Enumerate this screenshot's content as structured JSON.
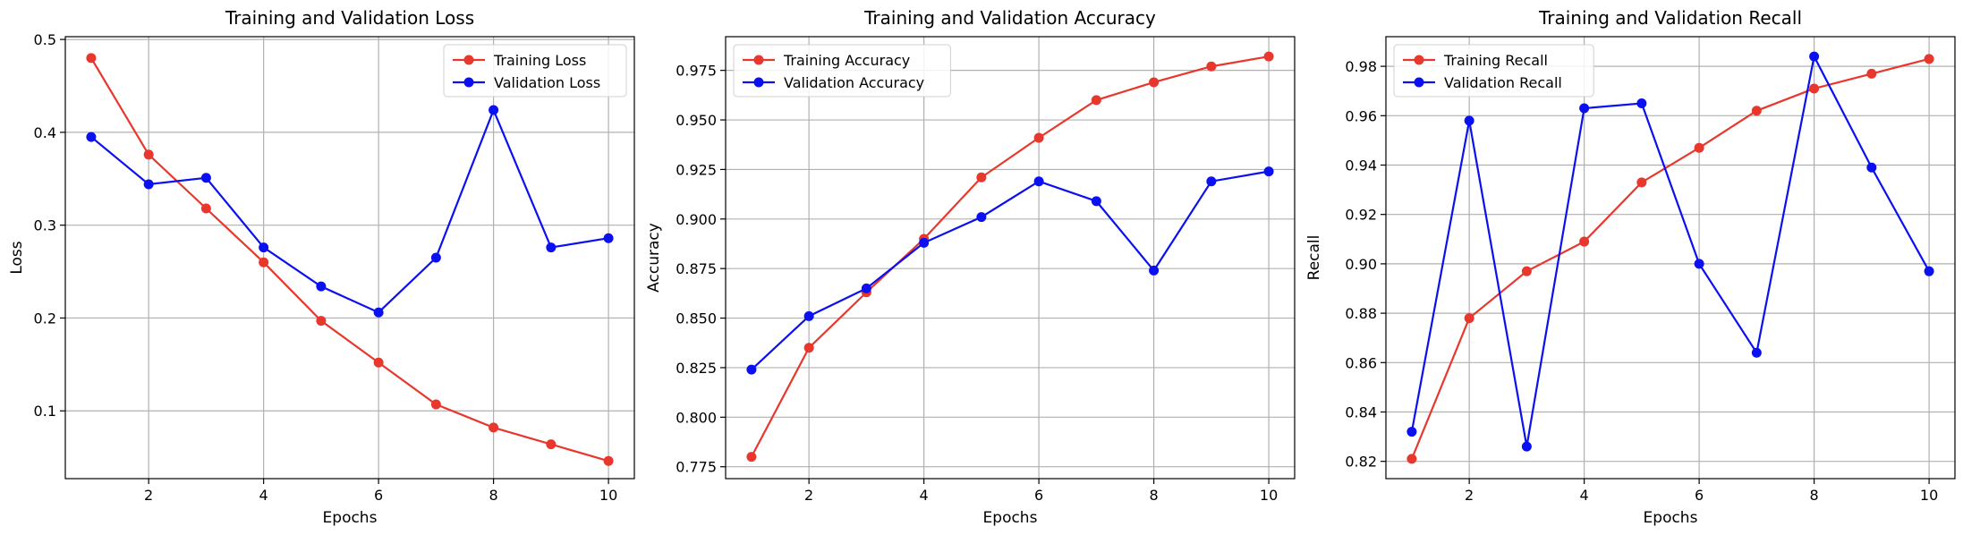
{
  "figure": {
    "colors": {
      "train": "#e8372c",
      "val": "#0a10f0",
      "grid": "#b0b0b0",
      "axes": "#000000"
    }
  },
  "chart_data": [
    {
      "type": "line",
      "title": "Training and Validation Loss",
      "xlabel": "Epochs",
      "ylabel": "Loss",
      "x": [
        1,
        2,
        3,
        4,
        5,
        6,
        7,
        8,
        9,
        10
      ],
      "xlim": [
        0.55,
        10.45
      ],
      "ylim": [
        0.027,
        0.503
      ],
      "xticks": [
        2,
        4,
        6,
        8,
        10
      ],
      "yticks": [
        0.1,
        0.2,
        0.3,
        0.4,
        0.5
      ],
      "ytick_labels": [
        "0.1",
        "0.2",
        "0.3",
        "0.4",
        "0.5"
      ],
      "grid": true,
      "legend": "top-right",
      "series": [
        {
          "name": "Training Loss",
          "color": "#e8372c",
          "values": [
            0.48,
            0.376,
            0.318,
            0.26,
            0.197,
            0.152,
            0.107,
            0.082,
            0.064,
            0.046
          ]
        },
        {
          "name": "Validation Loss",
          "color": "#0a10f0",
          "values": [
            0.395,
            0.344,
            0.351,
            0.276,
            0.234,
            0.206,
            0.265,
            0.424,
            0.276,
            0.286
          ]
        }
      ]
    },
    {
      "type": "line",
      "title": "Training and Validation Accuracy",
      "xlabel": "Epochs",
      "ylabel": "Accuracy",
      "x": [
        1,
        2,
        3,
        4,
        5,
        6,
        7,
        8,
        9,
        10
      ],
      "xlim": [
        0.55,
        10.45
      ],
      "ylim": [
        0.769,
        0.992
      ],
      "xticks": [
        2,
        4,
        6,
        8,
        10
      ],
      "yticks": [
        0.775,
        0.8,
        0.825,
        0.85,
        0.875,
        0.9,
        0.925,
        0.95,
        0.975
      ],
      "ytick_labels": [
        "0.775",
        "0.800",
        "0.825",
        "0.850",
        "0.875",
        "0.900",
        "0.925",
        "0.950",
        "0.975"
      ],
      "grid": true,
      "legend": "top-left",
      "series": [
        {
          "name": "Training Accuracy",
          "color": "#e8372c",
          "values": [
            0.78,
            0.835,
            0.863,
            0.89,
            0.921,
            0.941,
            0.96,
            0.969,
            0.977,
            0.982
          ]
        },
        {
          "name": "Validation Accuracy",
          "color": "#0a10f0",
          "values": [
            0.824,
            0.851,
            0.865,
            0.888,
            0.901,
            0.919,
            0.909,
            0.874,
            0.919,
            0.924
          ]
        }
      ]
    },
    {
      "type": "line",
      "title": "Training and Validation Recall",
      "xlabel": "Epochs",
      "ylabel": "Recall",
      "x": [
        1,
        2,
        3,
        4,
        5,
        6,
        7,
        8,
        9,
        10
      ],
      "xlim": [
        0.55,
        10.45
      ],
      "ylim": [
        0.813,
        0.992
      ],
      "xticks": [
        2,
        4,
        6,
        8,
        10
      ],
      "yticks": [
        0.82,
        0.84,
        0.86,
        0.88,
        0.9,
        0.92,
        0.94,
        0.96,
        0.98
      ],
      "ytick_labels": [
        "0.82",
        "0.84",
        "0.86",
        "0.88",
        "0.90",
        "0.92",
        "0.94",
        "0.96",
        "0.98"
      ],
      "grid": true,
      "legend": "top-left",
      "series": [
        {
          "name": "Training Recall",
          "color": "#e8372c",
          "values": [
            0.821,
            0.878,
            0.897,
            0.909,
            0.933,
            0.947,
            0.962,
            0.971,
            0.977,
            0.983
          ]
        },
        {
          "name": "Validation Recall",
          "color": "#0a10f0",
          "values": [
            0.832,
            0.958,
            0.826,
            0.963,
            0.965,
            0.9,
            0.864,
            0.984,
            0.939,
            0.897
          ]
        }
      ]
    }
  ]
}
